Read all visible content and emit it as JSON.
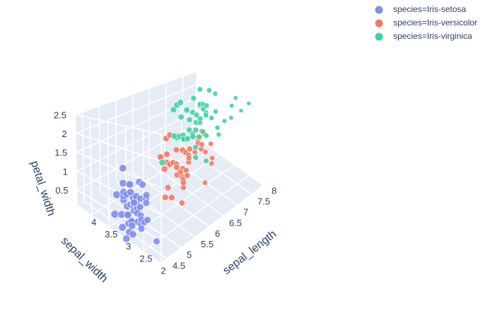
{
  "chart_data": {
    "type": "scatter",
    "mode": "3d",
    "title": "",
    "grid": true,
    "legend_position": "top-right",
    "axes": {
      "x": {
        "label": "sepal_length",
        "range": [
          4.3,
          7.9
        ],
        "ticks": [
          "4.5",
          "5",
          "5.5",
          "6",
          "6.5",
          "7",
          "7.5",
          "8"
        ]
      },
      "y": {
        "label": "sepal_width",
        "range": [
          2.0,
          4.4
        ],
        "ticks": [
          "2",
          "2.5",
          "3",
          "3.5",
          "4"
        ]
      },
      "z": {
        "label": "petal_width",
        "range": [
          0.1,
          2.5
        ],
        "ticks": [
          "0.5",
          "1",
          "1.5",
          "2",
          "2.5"
        ]
      }
    },
    "series": [
      {
        "name": "species=Iris-setosa",
        "color": "#7f8df0",
        "points": [
          [
            5.1,
            3.5,
            0.2
          ],
          [
            4.9,
            3.0,
            0.2
          ],
          [
            4.7,
            3.2,
            0.2
          ],
          [
            4.6,
            3.1,
            0.2
          ],
          [
            5.0,
            3.6,
            0.2
          ],
          [
            5.4,
            3.9,
            0.4
          ],
          [
            4.6,
            3.4,
            0.3
          ],
          [
            5.0,
            3.4,
            0.2
          ],
          [
            4.4,
            2.9,
            0.2
          ],
          [
            4.9,
            3.1,
            0.1
          ],
          [
            5.4,
            3.7,
            0.2
          ],
          [
            4.8,
            3.4,
            0.2
          ],
          [
            4.8,
            3.0,
            0.1
          ],
          [
            4.3,
            3.0,
            0.1
          ],
          [
            5.8,
            4.0,
            0.2
          ],
          [
            5.7,
            4.4,
            0.4
          ],
          [
            5.4,
            3.9,
            0.4
          ],
          [
            5.1,
            3.5,
            0.3
          ],
          [
            5.7,
            3.8,
            0.3
          ],
          [
            5.1,
            3.8,
            0.3
          ],
          [
            5.4,
            3.4,
            0.2
          ],
          [
            5.1,
            3.7,
            0.4
          ],
          [
            4.6,
            3.6,
            0.2
          ],
          [
            5.1,
            3.3,
            0.5
          ],
          [
            4.8,
            3.4,
            0.2
          ],
          [
            5.0,
            3.0,
            0.2
          ],
          [
            5.0,
            3.4,
            0.4
          ],
          [
            5.2,
            3.5,
            0.2
          ],
          [
            5.2,
            3.4,
            0.2
          ],
          [
            4.7,
            3.2,
            0.2
          ],
          [
            4.8,
            3.1,
            0.2
          ],
          [
            5.4,
            3.4,
            0.4
          ],
          [
            5.2,
            4.1,
            0.1
          ],
          [
            5.5,
            4.2,
            0.2
          ],
          [
            4.9,
            3.1,
            0.1
          ],
          [
            5.0,
            3.2,
            0.2
          ],
          [
            5.5,
            3.5,
            0.2
          ],
          [
            4.9,
            3.1,
            0.1
          ],
          [
            4.4,
            3.0,
            0.2
          ],
          [
            5.1,
            3.4,
            0.2
          ],
          [
            5.0,
            3.5,
            0.3
          ],
          [
            4.5,
            2.3,
            0.3
          ],
          [
            4.4,
            3.2,
            0.2
          ],
          [
            5.0,
            3.5,
            0.6
          ],
          [
            5.1,
            3.8,
            0.4
          ],
          [
            4.8,
            3.0,
            0.3
          ],
          [
            5.1,
            3.8,
            0.2
          ],
          [
            4.6,
            3.2,
            0.2
          ],
          [
            5.3,
            3.7,
            0.2
          ],
          [
            5.0,
            3.3,
            0.2
          ]
        ]
      },
      {
        "name": "species=Iris-versicolor",
        "color": "#ef7b66",
        "points": [
          [
            7.0,
            3.2,
            1.4
          ],
          [
            6.4,
            3.2,
            1.5
          ],
          [
            6.9,
            3.1,
            1.5
          ],
          [
            5.5,
            2.3,
            1.3
          ],
          [
            6.5,
            2.8,
            1.5
          ],
          [
            5.7,
            2.8,
            1.3
          ],
          [
            6.3,
            3.3,
            1.6
          ],
          [
            4.9,
            2.4,
            1.0
          ],
          [
            6.6,
            2.9,
            1.3
          ],
          [
            5.2,
            2.7,
            1.4
          ],
          [
            5.0,
            2.0,
            1.0
          ],
          [
            5.9,
            3.0,
            1.5
          ],
          [
            6.0,
            2.2,
            1.0
          ],
          [
            6.1,
            2.9,
            1.4
          ],
          [
            5.6,
            2.9,
            1.3
          ],
          [
            6.7,
            3.1,
            1.4
          ],
          [
            5.6,
            3.0,
            1.5
          ],
          [
            5.8,
            2.7,
            1.0
          ],
          [
            6.2,
            2.2,
            1.5
          ],
          [
            5.6,
            2.5,
            1.1
          ],
          [
            5.9,
            3.2,
            1.8
          ],
          [
            6.1,
            2.8,
            1.3
          ],
          [
            6.3,
            2.5,
            1.5
          ],
          [
            6.1,
            2.8,
            1.2
          ],
          [
            6.4,
            2.9,
            1.3
          ],
          [
            6.6,
            3.0,
            1.4
          ],
          [
            6.8,
            2.8,
            1.4
          ],
          [
            6.7,
            3.0,
            1.7
          ],
          [
            6.0,
            2.9,
            1.5
          ],
          [
            5.7,
            2.6,
            1.0
          ],
          [
            5.5,
            2.4,
            1.1
          ],
          [
            5.5,
            2.4,
            1.0
          ],
          [
            5.8,
            2.7,
            1.2
          ],
          [
            6.0,
            2.7,
            1.6
          ],
          [
            5.4,
            3.0,
            1.5
          ],
          [
            6.0,
            3.4,
            1.6
          ],
          [
            6.7,
            3.1,
            1.5
          ],
          [
            6.3,
            2.3,
            1.3
          ],
          [
            5.6,
            3.0,
            1.3
          ],
          [
            5.5,
            2.5,
            1.3
          ],
          [
            5.5,
            2.6,
            1.2
          ],
          [
            6.1,
            3.0,
            1.4
          ],
          [
            5.8,
            2.6,
            1.2
          ],
          [
            5.0,
            2.3,
            1.0
          ],
          [
            5.6,
            2.7,
            1.3
          ],
          [
            5.7,
            3.0,
            1.2
          ],
          [
            5.7,
            2.9,
            1.3
          ],
          [
            6.2,
            2.9,
            1.3
          ],
          [
            5.1,
            2.5,
            1.1
          ],
          [
            5.7,
            2.8,
            1.3
          ]
        ]
      },
      {
        "name": "species=Iris-virginica",
        "color": "#3fd3a3",
        "points": [
          [
            6.3,
            3.3,
            2.5
          ],
          [
            5.8,
            2.7,
            1.9
          ],
          [
            7.1,
            3.0,
            2.1
          ],
          [
            6.3,
            2.9,
            1.8
          ],
          [
            6.5,
            3.0,
            2.2
          ],
          [
            7.6,
            3.0,
            2.1
          ],
          [
            4.9,
            2.5,
            1.7
          ],
          [
            7.3,
            2.9,
            1.8
          ],
          [
            6.7,
            2.5,
            1.8
          ],
          [
            7.2,
            3.6,
            2.5
          ],
          [
            6.5,
            3.2,
            2.0
          ],
          [
            6.4,
            2.7,
            1.9
          ],
          [
            6.8,
            3.0,
            2.1
          ],
          [
            5.7,
            2.5,
            2.0
          ],
          [
            5.8,
            2.8,
            2.4
          ],
          [
            6.4,
            3.2,
            2.3
          ],
          [
            6.5,
            3.0,
            1.8
          ],
          [
            7.7,
            3.8,
            2.2
          ],
          [
            7.7,
            2.6,
            2.3
          ],
          [
            6.0,
            2.2,
            1.5
          ],
          [
            6.9,
            3.2,
            2.3
          ],
          [
            5.6,
            2.8,
            2.0
          ],
          [
            7.7,
            2.8,
            2.0
          ],
          [
            6.3,
            2.7,
            1.8
          ],
          [
            6.7,
            3.3,
            2.1
          ],
          [
            7.2,
            3.2,
            1.8
          ],
          [
            6.2,
            2.8,
            1.8
          ],
          [
            6.1,
            3.0,
            1.8
          ],
          [
            6.4,
            2.8,
            2.1
          ],
          [
            7.2,
            3.0,
            1.6
          ],
          [
            7.4,
            2.8,
            1.9
          ],
          [
            7.9,
            3.8,
            2.0
          ],
          [
            6.4,
            2.8,
            2.2
          ],
          [
            6.3,
            2.8,
            1.5
          ],
          [
            6.1,
            2.6,
            1.4
          ],
          [
            7.7,
            3.0,
            2.3
          ],
          [
            6.3,
            3.4,
            2.4
          ],
          [
            6.4,
            3.1,
            1.8
          ],
          [
            6.0,
            3.0,
            1.8
          ],
          [
            6.9,
            3.1,
            2.1
          ],
          [
            6.7,
            3.1,
            2.4
          ],
          [
            6.9,
            3.1,
            2.3
          ],
          [
            5.8,
            2.7,
            1.9
          ],
          [
            6.8,
            3.2,
            2.3
          ],
          [
            6.7,
            3.3,
            2.5
          ],
          [
            6.7,
            3.0,
            2.3
          ],
          [
            6.3,
            2.5,
            1.9
          ],
          [
            6.5,
            3.0,
            2.0
          ],
          [
            6.2,
            3.4,
            2.3
          ],
          [
            5.9,
            3.0,
            1.8
          ]
        ]
      }
    ]
  }
}
